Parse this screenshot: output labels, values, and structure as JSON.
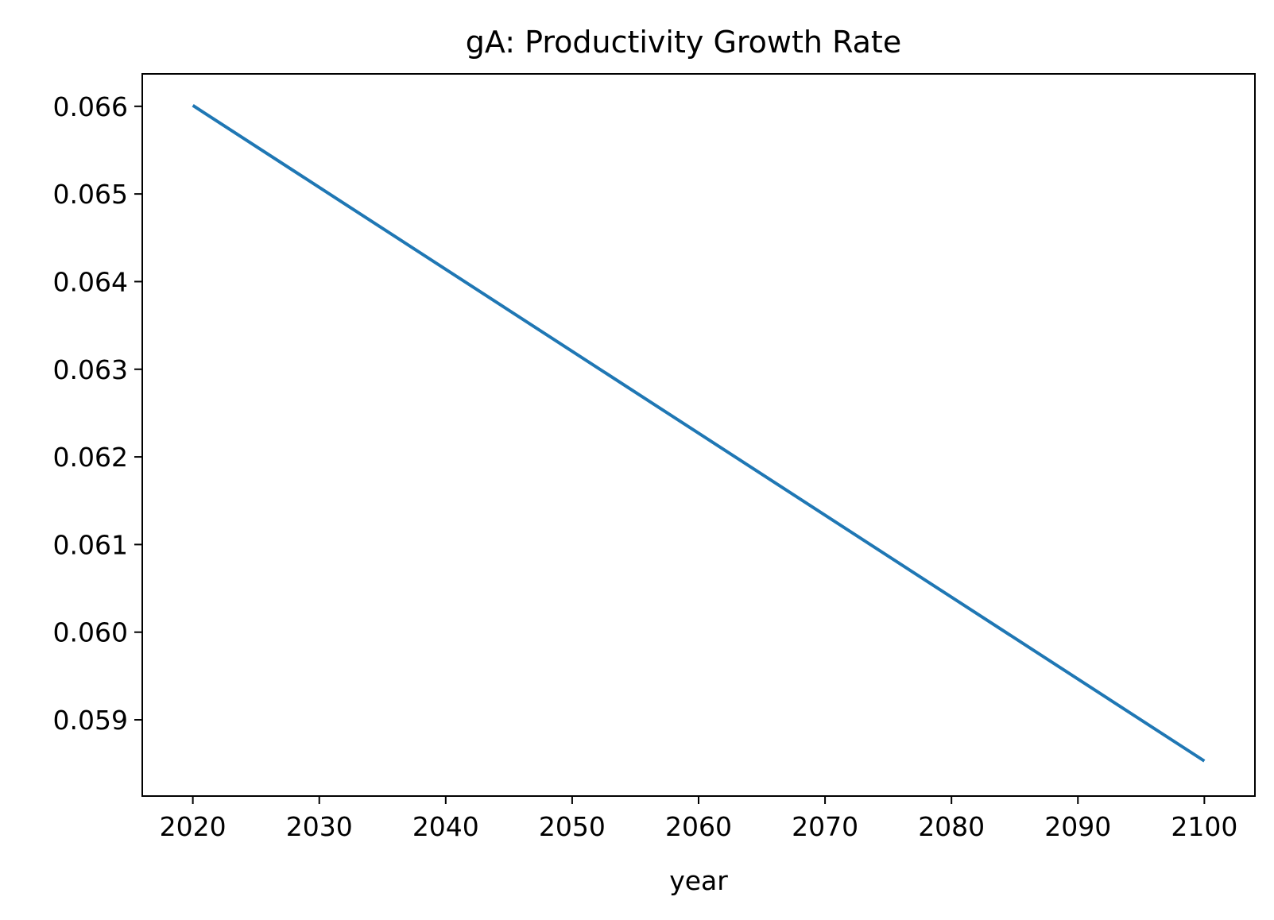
{
  "chart_data": {
    "type": "line",
    "title": "gA: Productivity Growth Rate",
    "xlabel": "year",
    "ylabel": "",
    "xlim": [
      2016,
      2104
    ],
    "ylim": [
      0.05813,
      0.06637
    ],
    "xticks": [
      2020,
      2030,
      2040,
      2050,
      2060,
      2070,
      2080,
      2090,
      2100
    ],
    "yticks": [
      0.059,
      0.06,
      0.061,
      0.062,
      0.063,
      0.064,
      0.065,
      0.066
    ],
    "ytick_labels": [
      "0.059",
      "0.060",
      "0.061",
      "0.062",
      "0.063",
      "0.064",
      "0.065",
      "0.066"
    ],
    "grid": false,
    "series": [
      {
        "color": "#1f77b4",
        "x": [
          2020,
          2100
        ],
        "y": [
          0.06601,
          0.05853
        ]
      }
    ]
  }
}
